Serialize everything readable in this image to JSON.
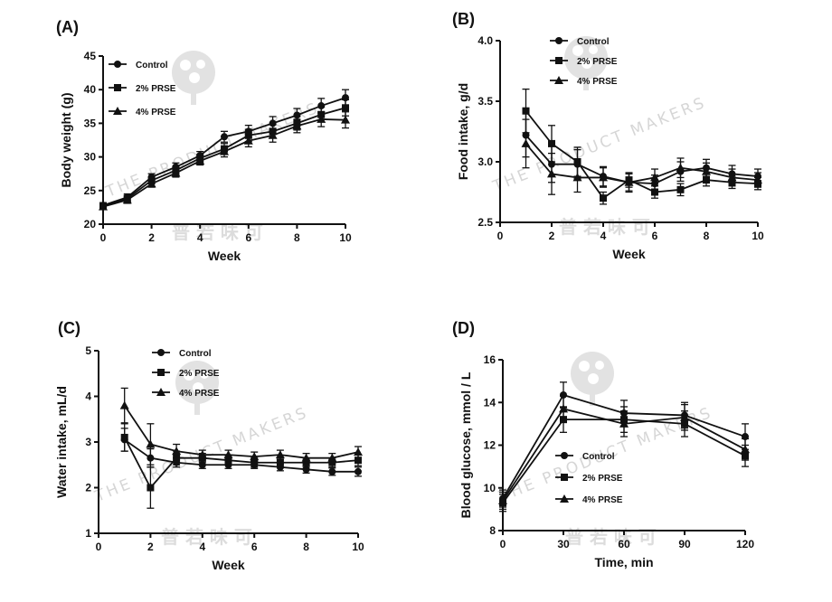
{
  "watermark": {
    "text": "THE PRODUCT MAKERS",
    "cjk": "普 若 味 可",
    "color": "#d9d9d9",
    "icon": "tree-logo"
  },
  "chart_data": [
    {
      "id": "A",
      "panel_label": "(A)",
      "type": "line",
      "xlabel": "Week",
      "ylabel": "Body weight (g)",
      "xlim": [
        0,
        10
      ],
      "ylim": [
        20,
        45
      ],
      "xticks": [
        0,
        2,
        4,
        6,
        8,
        10
      ],
      "yticks": [
        20,
        25,
        30,
        35,
        40,
        45
      ],
      "legend_position": "top-left",
      "x": [
        0,
        1,
        2,
        3,
        4,
        5,
        6,
        7,
        8,
        9,
        10
      ],
      "series": [
        {
          "name": "Control",
          "marker": "circle",
          "values": [
            22.8,
            24.0,
            27.0,
            28.5,
            30.2,
            33.0,
            33.8,
            35.0,
            36.2,
            37.6,
            38.8
          ],
          "errors": [
            0.4,
            0.5,
            0.5,
            0.6,
            0.6,
            0.8,
            0.9,
            1.0,
            1.0,
            1.1,
            1.2
          ]
        },
        {
          "name": "2% PRSE",
          "marker": "square",
          "values": [
            22.7,
            23.8,
            26.5,
            28.0,
            29.8,
            31.2,
            33.2,
            33.8,
            35.0,
            36.3,
            37.3
          ],
          "errors": [
            0.4,
            0.5,
            0.5,
            0.6,
            0.6,
            0.8,
            0.9,
            1.0,
            1.0,
            1.1,
            1.2
          ]
        },
        {
          "name": "4% PRSE",
          "marker": "triangle",
          "values": [
            22.6,
            23.6,
            26.0,
            27.6,
            29.4,
            30.8,
            32.4,
            33.2,
            34.6,
            35.6,
            35.5
          ],
          "errors": [
            0.4,
            0.5,
            0.5,
            0.6,
            0.6,
            0.8,
            0.9,
            1.0,
            1.0,
            1.1,
            1.2
          ]
        }
      ]
    },
    {
      "id": "B",
      "panel_label": "(B)",
      "type": "line",
      "xlabel": "Week",
      "ylabel": "Food intake, g/d",
      "xlim": [
        0,
        10
      ],
      "ylim": [
        2.5,
        4.0
      ],
      "xticks": [
        0,
        2,
        4,
        6,
        8,
        10
      ],
      "yticks": [
        2.5,
        3.0,
        3.5,
        4.0
      ],
      "yticklabels": [
        "2.5",
        "3.0",
        "3.5",
        "4.0"
      ],
      "legend_position": "top-right",
      "x": [
        1,
        2,
        3,
        4,
        5,
        6,
        7,
        8,
        9,
        10
      ],
      "series": [
        {
          "name": "Control",
          "marker": "circle",
          "values": [
            3.22,
            2.98,
            2.98,
            2.88,
            2.83,
            2.82,
            2.92,
            2.95,
            2.9,
            2.88
          ],
          "errors": [
            0.18,
            0.15,
            0.12,
            0.08,
            0.07,
            0.07,
            0.08,
            0.07,
            0.07,
            0.06
          ]
        },
        {
          "name": "2% PRSE",
          "marker": "square",
          "values": [
            3.42,
            3.15,
            3.0,
            2.7,
            2.85,
            2.75,
            2.77,
            2.85,
            2.83,
            2.82
          ],
          "errors": [
            0.18,
            0.15,
            0.12,
            0.05,
            0.06,
            0.05,
            0.05,
            0.05,
            0.05,
            0.05
          ]
        },
        {
          "name": "4% PRSE",
          "marker": "triangle",
          "values": [
            3.15,
            2.9,
            2.87,
            2.87,
            2.83,
            2.87,
            2.95,
            2.92,
            2.87,
            2.85
          ],
          "errors": [
            0.2,
            0.17,
            0.12,
            0.08,
            0.08,
            0.07,
            0.08,
            0.07,
            0.07,
            0.06
          ]
        }
      ]
    },
    {
      "id": "C",
      "panel_label": "(C)",
      "type": "line",
      "xlabel": "Week",
      "ylabel": "Water intake, mL/d",
      "xlim": [
        0,
        10
      ],
      "ylim": [
        1,
        5
      ],
      "xticks": [
        0,
        2,
        4,
        6,
        8,
        10
      ],
      "yticks": [
        1,
        2,
        3,
        4,
        5
      ],
      "legend_position": "top-right",
      "x": [
        1,
        2,
        3,
        4,
        5,
        6,
        7,
        8,
        9,
        10
      ],
      "series": [
        {
          "name": "Control",
          "marker": "circle",
          "values": [
            3.05,
            2.65,
            2.55,
            2.5,
            2.5,
            2.5,
            2.45,
            2.4,
            2.35,
            2.35
          ],
          "errors": [
            0.25,
            0.2,
            0.1,
            0.08,
            0.08,
            0.08,
            0.08,
            0.08,
            0.08,
            0.1
          ]
        },
        {
          "name": "2% PRSE",
          "marker": "square",
          "values": [
            3.1,
            2.0,
            2.65,
            2.65,
            2.6,
            2.55,
            2.55,
            2.55,
            2.55,
            2.6
          ],
          "errors": [
            0.3,
            0.45,
            0.15,
            0.1,
            0.1,
            0.1,
            0.1,
            0.1,
            0.1,
            0.12
          ]
        },
        {
          "name": "4% PRSE",
          "marker": "triangle",
          "values": [
            3.8,
            2.95,
            2.8,
            2.72,
            2.72,
            2.68,
            2.72,
            2.65,
            2.65,
            2.78
          ],
          "errors": [
            0.38,
            0.45,
            0.15,
            0.1,
            0.1,
            0.1,
            0.1,
            0.1,
            0.1,
            0.12
          ]
        }
      ]
    },
    {
      "id": "D",
      "panel_label": "(D)",
      "type": "line",
      "xlabel": "Time, min",
      "ylabel": "Blood glucose, mmol / L",
      "xlim": [
        0,
        120
      ],
      "ylim": [
        8,
        16
      ],
      "xticks": [
        0,
        30,
        60,
        90,
        120
      ],
      "yticks": [
        8,
        10,
        12,
        14,
        16
      ],
      "legend_position": "bottom-left",
      "x": [
        0,
        30,
        60,
        90,
        120
      ],
      "series": [
        {
          "name": "Control",
          "marker": "circle",
          "values": [
            9.5,
            14.35,
            13.5,
            13.4,
            12.4
          ],
          "errors": [
            0.4,
            0.6,
            0.6,
            0.6,
            0.6
          ]
        },
        {
          "name": "2% PRSE",
          "marker": "square",
          "values": [
            9.3,
            13.2,
            13.2,
            13.0,
            11.5
          ],
          "errors": [
            0.4,
            0.6,
            0.6,
            0.6,
            0.5
          ]
        },
        {
          "name": "4% PRSE",
          "marker": "triangle",
          "values": [
            9.4,
            13.7,
            13.0,
            13.3,
            11.8
          ],
          "errors": [
            0.4,
            0.6,
            0.6,
            0.6,
            0.5
          ]
        }
      ]
    }
  ]
}
